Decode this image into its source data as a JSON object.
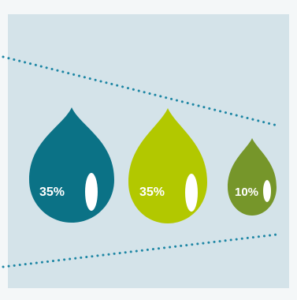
{
  "drops": [
    {
      "label": "35%",
      "value": 35,
      "color": "#0b7286"
    },
    {
      "label": "35%",
      "value": 35,
      "color": "#b2c800"
    },
    {
      "label": "10%",
      "value": 10,
      "color": "#76962a"
    }
  ],
  "colors": {
    "background": "#d4e3e9",
    "frame": "#f4f7f8",
    "dotted_line": "#1d86a4",
    "highlight": "#ffffff"
  }
}
